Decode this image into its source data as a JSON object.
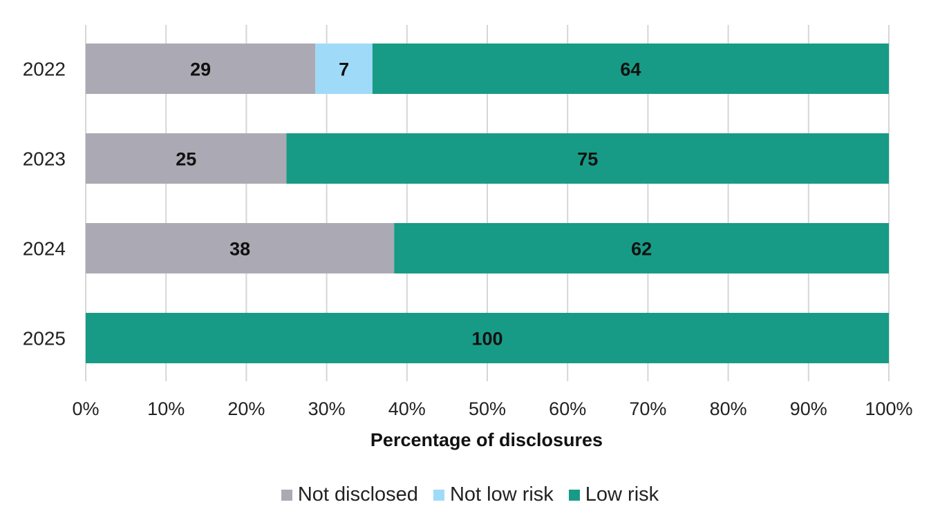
{
  "chart_data": {
    "type": "bar",
    "orientation": "horizontal",
    "stacked": true,
    "categories": [
      "2022",
      "2023",
      "2024",
      "2025"
    ],
    "series": [
      {
        "name": "Not disclosed",
        "color": "#abaab4",
        "values": [
          28.6,
          25,
          38.4,
          0
        ],
        "labels": [
          "29",
          "25",
          "38",
          ""
        ]
      },
      {
        "name": "Not low risk",
        "color": "#9fdbf8",
        "values": [
          7.1,
          0,
          0,
          0
        ],
        "labels": [
          "7",
          "",
          "",
          ""
        ]
      },
      {
        "name": "Low risk",
        "color": "#179b86",
        "values": [
          64.3,
          75,
          61.6,
          100
        ],
        "labels": [
          "64",
          "75",
          "62",
          "100"
        ]
      }
    ],
    "xlabel": "Percentage of disclosures",
    "ylabel": "",
    "xlim": [
      0,
      100
    ],
    "xticks": [
      "0%",
      "10%",
      "20%",
      "30%",
      "40%",
      "50%",
      "60%",
      "70%",
      "80%",
      "90%",
      "100%"
    ],
    "grid": "vertical",
    "legend_position": "bottom-center"
  }
}
